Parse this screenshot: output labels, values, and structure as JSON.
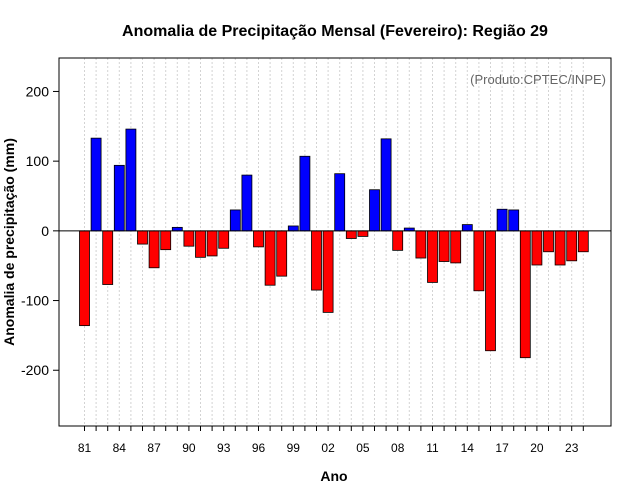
{
  "chart_data": {
    "type": "bar",
    "title": "Anomalia de Precipitação Mensal (Fevereiro): Região 29",
    "xlabel": "Ano",
    "ylabel": "Anomalia de precipitação (mm)",
    "credit": "(Produto:CPTEC/INPE)",
    "ylim": [
      -280,
      248
    ],
    "yticks": [
      -200,
      -100,
      0,
      100,
      200
    ],
    "x_tick_labels": [
      "81",
      "84",
      "87",
      "90",
      "93",
      "96",
      "99",
      "02",
      "05",
      "08",
      "11",
      "14",
      "17",
      "20",
      "23"
    ],
    "x_tick_every": 3,
    "categories": [
      "81",
      "82",
      "83",
      "84",
      "85",
      "86",
      "87",
      "88",
      "89",
      "90",
      "91",
      "92",
      "93",
      "94",
      "95",
      "96",
      "97",
      "98",
      "99",
      "00",
      "01",
      "02",
      "03",
      "04",
      "05",
      "06",
      "07",
      "08",
      "09",
      "10",
      "11",
      "12",
      "13",
      "14",
      "15",
      "16",
      "17",
      "18",
      "19",
      "20",
      "21",
      "22",
      "23",
      "24"
    ],
    "values": [
      -136,
      133,
      -77,
      94,
      146,
      -19,
      -53,
      -27,
      5,
      -22,
      -38,
      -36,
      -25,
      30,
      80,
      -23,
      -78,
      -65,
      7,
      107,
      -85,
      -117,
      82,
      -11,
      -8,
      59,
      132,
      -28,
      4,
      -39,
      -74,
      -44,
      -46,
      9,
      -86,
      -172,
      31,
      30,
      -182,
      -49,
      -30,
      -49,
      -43,
      -30
    ],
    "colors": {
      "positive": "#0000ff",
      "negative": "#ff0000",
      "zero_line": "#000000",
      "grid": "#d3d3d3"
    },
    "grid": true
  }
}
